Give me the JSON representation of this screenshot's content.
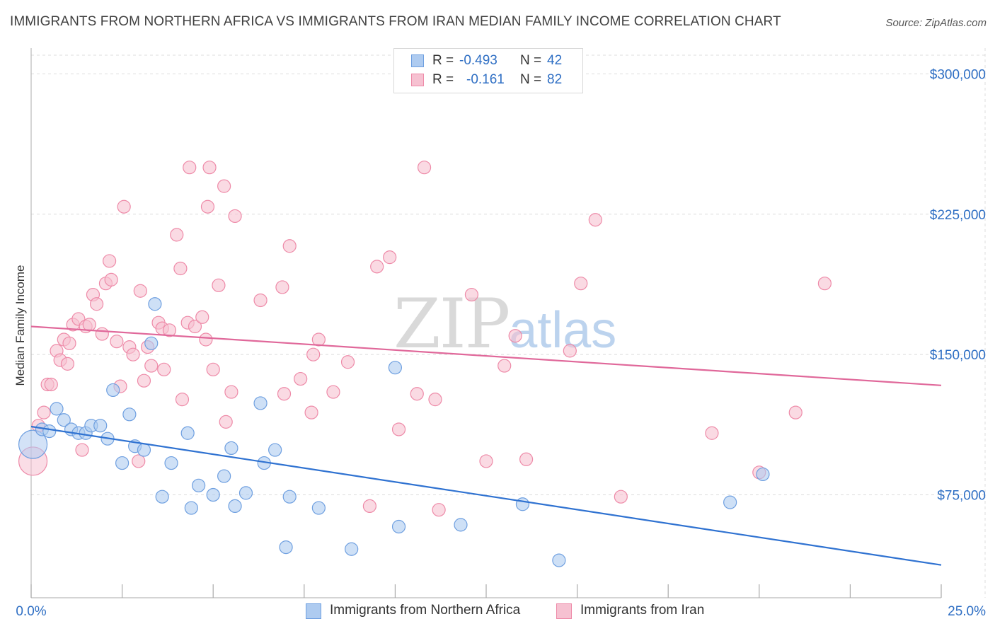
{
  "header": {
    "title": "IMMIGRANTS FROM NORTHERN AFRICA VS IMMIGRANTS FROM IRAN MEDIAN FAMILY INCOME CORRELATION CHART",
    "source": "Source: ZipAtlas.com"
  },
  "watermark": {
    "zip": "ZIP",
    "atlas": "atlas"
  },
  "legend": {
    "rows": [
      {
        "r_label": "R = ",
        "r_value": "-0.493",
        "n_label": "N = ",
        "n_value": "42"
      },
      {
        "r_label": "R = ",
        "r_value": "-0.161",
        "n_label": "N = ",
        "n_value": "82"
      }
    ]
  },
  "bottom_legend": {
    "items": [
      {
        "label": "Immigrants from Northern Africa"
      },
      {
        "label": "Immigrants from Iran"
      }
    ]
  },
  "colors": {
    "blue_fill": "#aecbf0",
    "blue_stroke": "#6e9fe0",
    "blue_line": "#2f72d1",
    "pink_fill": "#f6c1d1",
    "pink_stroke": "#ee8aa8",
    "pink_line": "#e0689a",
    "axis_text": "#2f6fc4",
    "grid": "#dcdcdc"
  },
  "chart_data": {
    "type": "scatter",
    "xlabel": "",
    "ylabel": "Median Family Income",
    "xlim": [
      0,
      25
    ],
    "ylim": [
      20000,
      310000
    ],
    "x_tick_labels": [
      "0.0%",
      "25.0%"
    ],
    "y_ticks": [
      75000,
      150000,
      225000,
      300000
    ],
    "y_tick_labels": [
      "$75,000",
      "$150,000",
      "$225,000",
      "$300,000"
    ],
    "grid": true,
    "legend_position": "top-center",
    "series": [
      {
        "name": "Immigrants from Northern Africa",
        "r": -0.493,
        "n": 42,
        "trend": {
          "x": [
            0,
            25
          ],
          "y": [
            111500,
            37500
          ]
        },
        "points": [
          {
            "x": 0.05,
            "y": 102000,
            "big": true
          },
          {
            "x": 0.3,
            "y": 110000
          },
          {
            "x": 0.5,
            "y": 109000
          },
          {
            "x": 0.7,
            "y": 121000
          },
          {
            "x": 0.9,
            "y": 115000
          },
          {
            "x": 1.1,
            "y": 110000
          },
          {
            "x": 1.3,
            "y": 108000
          },
          {
            "x": 1.5,
            "y": 108000
          },
          {
            "x": 1.65,
            "y": 112000
          },
          {
            "x": 1.9,
            "y": 112000
          },
          {
            "x": 2.1,
            "y": 105000
          },
          {
            "x": 2.25,
            "y": 131000
          },
          {
            "x": 2.5,
            "y": 92000
          },
          {
            "x": 2.7,
            "y": 118000
          },
          {
            "x": 2.85,
            "y": 101000
          },
          {
            "x": 3.1,
            "y": 99000
          },
          {
            "x": 3.3,
            "y": 156000
          },
          {
            "x": 3.4,
            "y": 177000
          },
          {
            "x": 3.6,
            "y": 74000
          },
          {
            "x": 3.85,
            "y": 92000
          },
          {
            "x": 4.3,
            "y": 108000
          },
          {
            "x": 4.4,
            "y": 68000
          },
          {
            "x": 4.6,
            "y": 80000
          },
          {
            "x": 5.0,
            "y": 75000
          },
          {
            "x": 5.3,
            "y": 85000
          },
          {
            "x": 5.5,
            "y": 100000
          },
          {
            "x": 5.6,
            "y": 69000
          },
          {
            "x": 5.9,
            "y": 76000
          },
          {
            "x": 6.3,
            "y": 124000
          },
          {
            "x": 6.4,
            "y": 92000
          },
          {
            "x": 6.7,
            "y": 99000
          },
          {
            "x": 7.0,
            "y": 47000
          },
          {
            "x": 7.1,
            "y": 74000
          },
          {
            "x": 7.9,
            "y": 68000
          },
          {
            "x": 8.8,
            "y": 46000
          },
          {
            "x": 10.0,
            "y": 143000
          },
          {
            "x": 10.1,
            "y": 58000
          },
          {
            "x": 11.8,
            "y": 59000
          },
          {
            "x": 13.5,
            "y": 70000
          },
          {
            "x": 14.5,
            "y": 40000
          },
          {
            "x": 19.2,
            "y": 71000
          },
          {
            "x": 20.1,
            "y": 86000
          }
        ]
      },
      {
        "name": "Immigrants from Iran",
        "r": -0.161,
        "n": 82,
        "trend": {
          "x": [
            0,
            25
          ],
          "y": [
            165000,
            133500
          ]
        },
        "points": [
          {
            "x": 0.05,
            "y": 93000,
            "big": true
          },
          {
            "x": 0.2,
            "y": 112000
          },
          {
            "x": 0.35,
            "y": 119000
          },
          {
            "x": 0.45,
            "y": 134000
          },
          {
            "x": 0.55,
            "y": 134000
          },
          {
            "x": 0.7,
            "y": 152000
          },
          {
            "x": 0.8,
            "y": 147000
          },
          {
            "x": 0.9,
            "y": 158000
          },
          {
            "x": 1.0,
            "y": 145000
          },
          {
            "x": 1.05,
            "y": 156000
          },
          {
            "x": 1.15,
            "y": 166000
          },
          {
            "x": 1.3,
            "y": 169000
          },
          {
            "x": 1.4,
            "y": 99000
          },
          {
            "x": 1.5,
            "y": 165000
          },
          {
            "x": 1.6,
            "y": 166000
          },
          {
            "x": 1.7,
            "y": 182000
          },
          {
            "x": 1.8,
            "y": 177000
          },
          {
            "x": 1.95,
            "y": 161000
          },
          {
            "x": 2.05,
            "y": 188000
          },
          {
            "x": 2.15,
            "y": 200000
          },
          {
            "x": 2.2,
            "y": 190000
          },
          {
            "x": 2.35,
            "y": 157000
          },
          {
            "x": 2.45,
            "y": 133000
          },
          {
            "x": 2.55,
            "y": 229000
          },
          {
            "x": 2.7,
            "y": 154000
          },
          {
            "x": 2.8,
            "y": 150000
          },
          {
            "x": 2.95,
            "y": 93000
          },
          {
            "x": 3.0,
            "y": 184000
          },
          {
            "x": 3.1,
            "y": 136000
          },
          {
            "x": 3.2,
            "y": 154000
          },
          {
            "x": 3.3,
            "y": 144000
          },
          {
            "x": 3.5,
            "y": 167000
          },
          {
            "x": 3.6,
            "y": 164000
          },
          {
            "x": 3.65,
            "y": 142000
          },
          {
            "x": 3.8,
            "y": 163000
          },
          {
            "x": 4.0,
            "y": 214000
          },
          {
            "x": 4.1,
            "y": 196000
          },
          {
            "x": 4.15,
            "y": 126000
          },
          {
            "x": 4.3,
            "y": 167000
          },
          {
            "x": 4.35,
            "y": 250000
          },
          {
            "x": 4.5,
            "y": 165000
          },
          {
            "x": 4.7,
            "y": 170000
          },
          {
            "x": 4.8,
            "y": 158000
          },
          {
            "x": 4.85,
            "y": 229000
          },
          {
            "x": 4.9,
            "y": 250000
          },
          {
            "x": 5.0,
            "y": 142000
          },
          {
            "x": 5.15,
            "y": 187000
          },
          {
            "x": 5.3,
            "y": 240000
          },
          {
            "x": 5.35,
            "y": 114000
          },
          {
            "x": 5.5,
            "y": 130000
          },
          {
            "x": 5.6,
            "y": 224000
          },
          {
            "x": 6.3,
            "y": 179000
          },
          {
            "x": 6.9,
            "y": 186000
          },
          {
            "x": 6.95,
            "y": 129000
          },
          {
            "x": 7.1,
            "y": 208000
          },
          {
            "x": 7.4,
            "y": 137000
          },
          {
            "x": 7.7,
            "y": 119000
          },
          {
            "x": 7.75,
            "y": 150000
          },
          {
            "x": 7.9,
            "y": 158000
          },
          {
            "x": 8.3,
            "y": 130000
          },
          {
            "x": 8.7,
            "y": 146000
          },
          {
            "x": 9.3,
            "y": 69000
          },
          {
            "x": 9.5,
            "y": 197000
          },
          {
            "x": 9.85,
            "y": 202000
          },
          {
            "x": 10.1,
            "y": 110000
          },
          {
            "x": 10.6,
            "y": 129000
          },
          {
            "x": 10.8,
            "y": 250000
          },
          {
            "x": 11.1,
            "y": 126000
          },
          {
            "x": 11.2,
            "y": 67000
          },
          {
            "x": 12.1,
            "y": 182000
          },
          {
            "x": 12.5,
            "y": 93000
          },
          {
            "x": 13.0,
            "y": 144000
          },
          {
            "x": 13.3,
            "y": 160000
          },
          {
            "x": 13.6,
            "y": 94000
          },
          {
            "x": 14.8,
            "y": 152000
          },
          {
            "x": 15.1,
            "y": 188000
          },
          {
            "x": 15.5,
            "y": 222000
          },
          {
            "x": 16.2,
            "y": 74000
          },
          {
            "x": 18.7,
            "y": 108000
          },
          {
            "x": 20.0,
            "y": 87000
          },
          {
            "x": 21.0,
            "y": 119000
          },
          {
            "x": 21.8,
            "y": 188000
          }
        ]
      }
    ]
  }
}
